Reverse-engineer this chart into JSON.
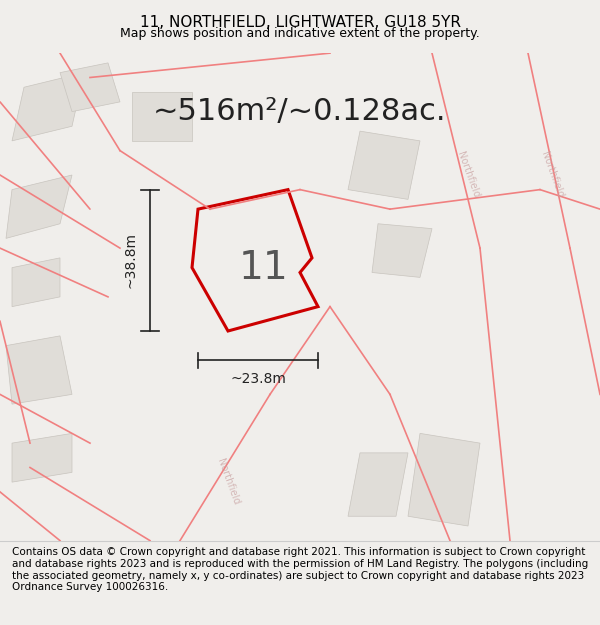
{
  "title": "11, NORTHFIELD, LIGHTWATER, GU18 5YR",
  "subtitle": "Map shows position and indicative extent of the property.",
  "area_text": "~516m²/~0.128ac.",
  "property_label": "11",
  "dim_horizontal": "~23.8m",
  "dim_vertical": "~38.8m",
  "footer": "Contains OS data © Crown copyright and database right 2021. This information is subject to Crown copyright and database rights 2023 and is reproduced with the permission of HM Land Registry. The polygons (including the associated geometry, namely x, y co-ordinates) are subject to Crown copyright and database rights 2023 Ordnance Survey 100026316.",
  "bg_color": "#f0eeeb",
  "map_bg": "#f5f3f0",
  "road_color": "#f08080",
  "building_color": "#e0ddd8",
  "building_edge": "#c8c4be",
  "property_edge": "#cc0000",
  "property_lw": 2.2,
  "dim_color": "#222222",
  "footer_bg": "#ffffff",
  "title_fontsize": 11,
  "subtitle_fontsize": 9,
  "area_fontsize": 22,
  "label_fontsize": 28,
  "dim_fontsize": 10,
  "footer_fontsize": 7.5
}
